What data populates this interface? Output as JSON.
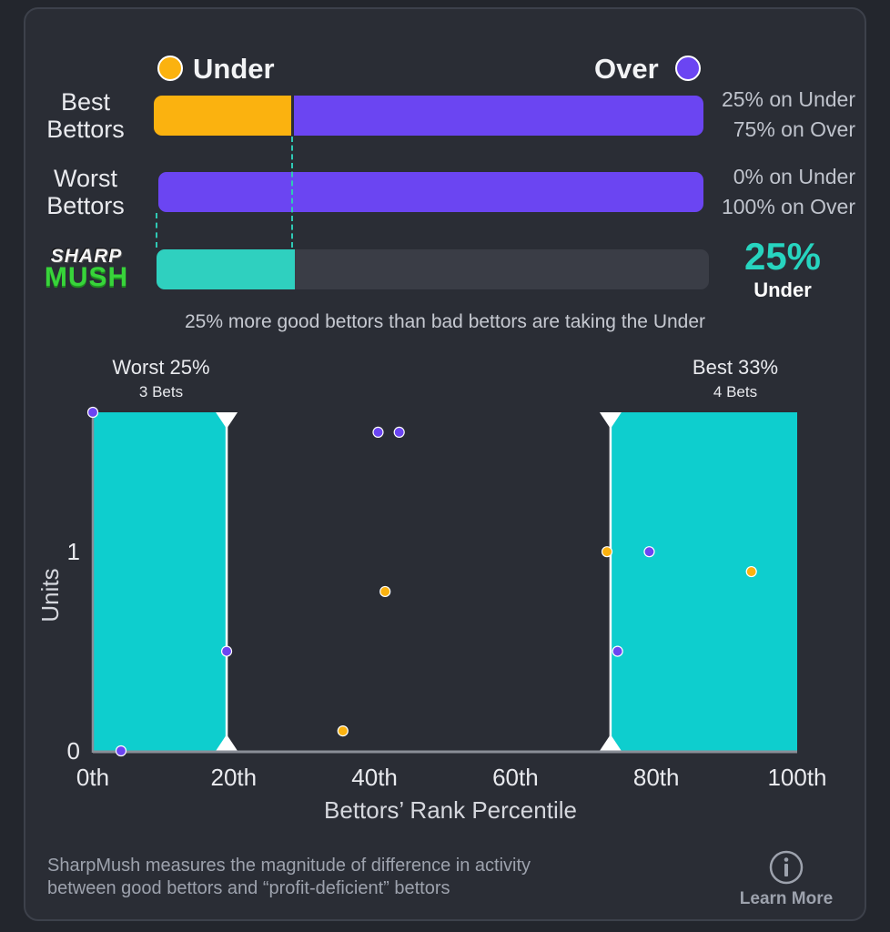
{
  "legend": {
    "under_label": "Under",
    "over_label": "Over",
    "under_color": "#fbb20f",
    "over_color": "#6b45f2",
    "sharpmush_color": "#2fd0bf"
  },
  "rows": [
    {
      "label_line1": "Best",
      "label_line2": "Bettors",
      "under_pct": 25,
      "over_pct": 75,
      "under_text": "25% on Under",
      "over_text": "75% on Over"
    },
    {
      "label_line1": "Worst",
      "label_line2": "Bettors",
      "under_pct": 0,
      "over_pct": 100,
      "under_text": "0% on Under",
      "over_text": "100% on Over"
    }
  ],
  "sharpmush": {
    "logo_top": "SHARP",
    "logo_bottom": "MUSH",
    "value_pct": 25,
    "value_text": "25%",
    "side_text": "Under"
  },
  "summary_text": "25% more good bettors than bad bettors are taking the Under",
  "chart_data": {
    "type": "scatter",
    "xlabel": "Bettors’ Rank Percentile",
    "ylabel": "Units",
    "xlim": [
      0,
      100
    ],
    "ylim": [
      0,
      1.7
    ],
    "x_ticks": [
      "0th",
      "20th",
      "40th",
      "60th",
      "80th",
      "100th"
    ],
    "x_tick_values": [
      0,
      20,
      40,
      60,
      80,
      100
    ],
    "y_ticks": [
      "0",
      "1"
    ],
    "y_tick_values": [
      0,
      1
    ],
    "regions": [
      {
        "label": "Worst 25%",
        "sublabel": "3 Bets",
        "from": 0,
        "to": 19
      },
      {
        "label": "Best 33%",
        "sublabel": "4 Bets",
        "from": 73.5,
        "to": 100
      }
    ],
    "series": [
      {
        "name": "Under",
        "color": "#fbb20f",
        "points": [
          [
            35.5,
            0.1
          ],
          [
            41.5,
            0.8
          ],
          [
            73,
            1.0
          ],
          [
            93.5,
            0.9
          ]
        ]
      },
      {
        "name": "Over",
        "color": "#6b45f2",
        "points": [
          [
            0,
            1.7
          ],
          [
            4,
            0
          ],
          [
            19,
            0.5
          ],
          [
            40.5,
            1.6
          ],
          [
            43.5,
            1.6
          ],
          [
            74.5,
            0.5
          ],
          [
            79,
            1.0
          ]
        ]
      }
    ]
  },
  "footer": {
    "line1": "SharpMush measures the magnitude of difference in activity",
    "line2": "between good bettors and “profit-deficient” bettors",
    "info_icon": "info-icon",
    "learn_more_label": "Learn More"
  }
}
